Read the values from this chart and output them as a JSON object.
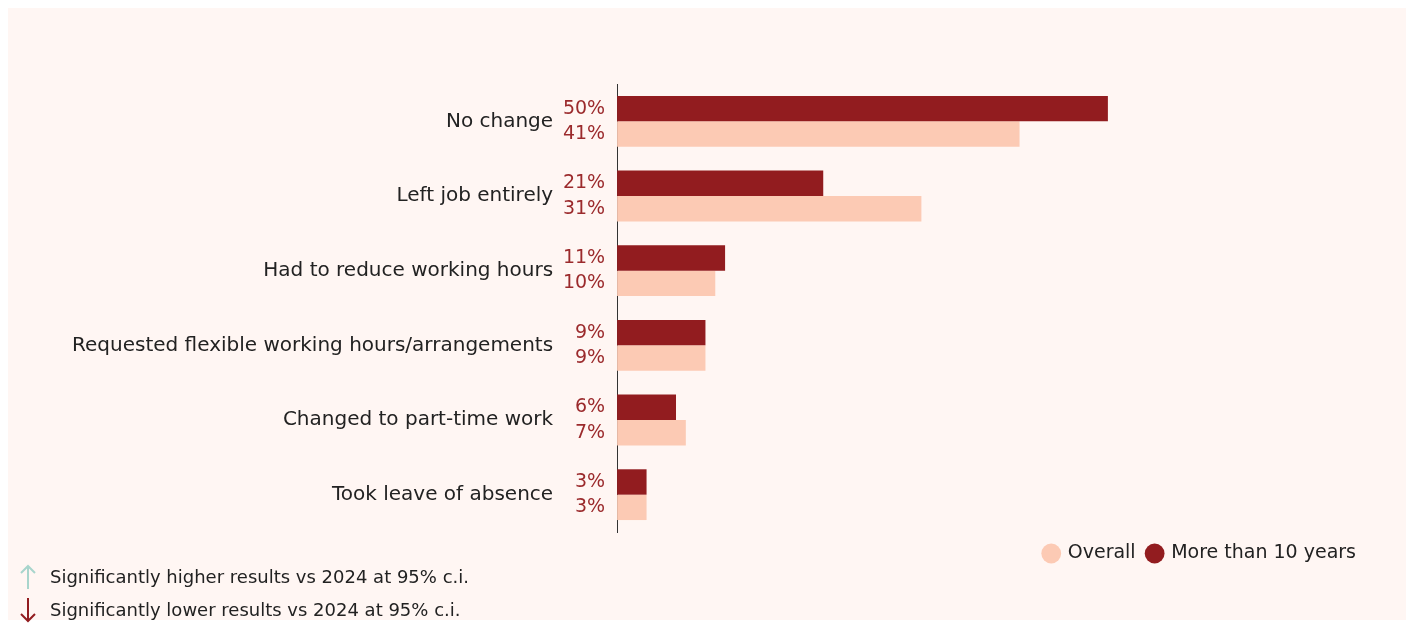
{
  "chart_data": {
    "type": "bar",
    "orientation": "horizontal",
    "categories": [
      "No change",
      "Left job entirely",
      "Had to reduce working hours",
      "Requested flexible working hours/arrangements",
      "Changed to part-time work",
      "Took leave of absence"
    ],
    "series": [
      {
        "name": "More than 10 years",
        "color": "#921c1f",
        "values": [
          50,
          21,
          11,
          9,
          6,
          3
        ],
        "value_labels": [
          "50%",
          "21%",
          "11%",
          "9%",
          "6%",
          "3%"
        ]
      },
      {
        "name": "Overall",
        "color": "#fccab4",
        "values": [
          41,
          31,
          10,
          9,
          7,
          3
        ],
        "value_labels": [
          "41%",
          "31%",
          "10%",
          "9%",
          "7%",
          "3%"
        ]
      }
    ],
    "legend": "bottom right",
    "annotations": [
      "Significantly higher results vs 2024 at 95% c.i.",
      "Significantly lower results vs 2024 at 95% c.i."
    ]
  }
}
